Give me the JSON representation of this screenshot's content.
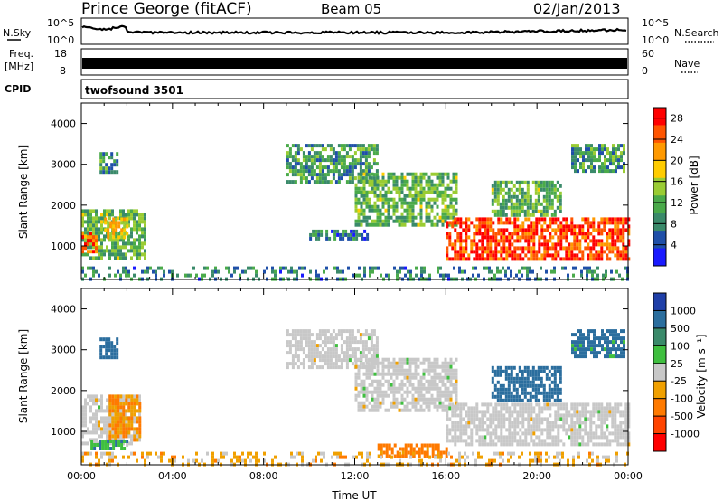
{
  "header": {
    "station": "Prince George (fitACF)",
    "beam": "Beam 05",
    "date": "02/Jan/2013"
  },
  "noise_panel": {
    "left_label": "N.Sky",
    "left_ticks": [
      "10^5",
      "10^0"
    ],
    "right_ticks": [
      "10^5",
      "10^0"
    ],
    "right_label": "N.Search"
  },
  "freq_panel": {
    "left_label_1": "Freq.",
    "left_label_2": "[MHz]",
    "left_ticks": [
      "18",
      "8"
    ],
    "right_ticks": [
      "60",
      "0"
    ],
    "right_label": "Nave"
  },
  "cpid_panel": {
    "label": "CPID",
    "value": "twofsound 3501"
  },
  "colors": {
    "power_scale": [
      "#1a1aff",
      "#1f4fa8",
      "#3a8a6a",
      "#4aaa4a",
      "#9acc33",
      "#ffcc00",
      "#ff9900",
      "#ff5500",
      "#ff0000"
    ],
    "velocity_scale": [
      "#1f3fa8",
      "#2b6e9e",
      "#3a8a6a",
      "#3fbf3f",
      "#c8c8c8",
      "#f0a000",
      "#ff7a00",
      "#ff4400",
      "#ff0000"
    ],
    "ground_scatter": "#c8c8c8"
  },
  "chart_data": [
    {
      "type": "heatmap",
      "name": "Power",
      "xlabel": "",
      "ylabel": "Slant Range [km]",
      "xlim": [
        0,
        24
      ],
      "ylim": [
        180,
        4500
      ],
      "y_ticks": [
        "1000",
        "2000",
        "3000",
        "4000"
      ],
      "colorbar_label": "Power [dB]",
      "colorbar_ticks": [
        "4",
        "8",
        "12",
        "16",
        "20",
        "24",
        "28"
      ],
      "colorbar_range": [
        0,
        30
      ],
      "regions": [
        {
          "t0": 0.0,
          "t1": 2.8,
          "r0": 700,
          "r1": 1900,
          "value": 12
        },
        {
          "t0": 0.0,
          "t1": 0.6,
          "r0": 850,
          "r1": 1350,
          "value": 24
        },
        {
          "t0": 1.0,
          "t1": 2.0,
          "r0": 1200,
          "r1": 1700,
          "value": 18
        },
        {
          "t0": 0.8,
          "t1": 1.6,
          "r0": 2800,
          "r1": 3300,
          "value": 10
        },
        {
          "t0": 9.0,
          "t1": 13.0,
          "r0": 2600,
          "r1": 3500,
          "value": 10
        },
        {
          "t0": 12.0,
          "t1": 16.5,
          "r0": 1500,
          "r1": 2800,
          "value": 12
        },
        {
          "t0": 10.0,
          "t1": 12.5,
          "r0": 1200,
          "r1": 1400,
          "value": 6
        },
        {
          "t0": 16.0,
          "t1": 24.0,
          "r0": 700,
          "r1": 1700,
          "value": 26
        },
        {
          "t0": 18.0,
          "t1": 21.0,
          "r0": 1800,
          "r1": 2600,
          "value": 12
        },
        {
          "t0": 21.5,
          "t1": 23.8,
          "r0": 2800,
          "r1": 3500,
          "value": 10
        },
        {
          "t0": 0.0,
          "t1": 24.0,
          "r0": 180,
          "r1": 500,
          "value": 8
        }
      ]
    },
    {
      "type": "heatmap",
      "name": "Velocity",
      "xlabel": "Time UT",
      "ylabel": "Slant Range [km]",
      "xlim": [
        0,
        24
      ],
      "ylim": [
        180,
        4500
      ],
      "x_ticks": [
        "00:00",
        "04:00",
        "08:00",
        "12:00",
        "16:00",
        "20:00",
        "00:00"
      ],
      "y_ticks": [
        "1000",
        "2000",
        "3000",
        "4000"
      ],
      "colorbar_label": "Velocity [m s⁻¹]",
      "colorbar_ticks": [
        "1000",
        "500",
        "100",
        "25",
        "-25",
        "-100",
        "-500",
        "-1000"
      ],
      "colorbar_range": [
        -1000,
        1000
      ],
      "regions": [
        {
          "t0": 0.0,
          "t1": 2.6,
          "r0": 700,
          "r1": 1900,
          "value": 0,
          "ground": true
        },
        {
          "t0": 1.2,
          "t1": 2.6,
          "r0": 800,
          "r1": 1900,
          "value": -80
        },
        {
          "t0": 0.4,
          "t1": 2.0,
          "r0": 550,
          "r1": 800,
          "value": 80
        },
        {
          "t0": 0.8,
          "t1": 1.6,
          "r0": 2800,
          "r1": 3300,
          "value": 200
        },
        {
          "t0": 9.0,
          "t1": 13.0,
          "r0": 2600,
          "r1": 3500,
          "value": 0,
          "ground": true
        },
        {
          "t0": 12.0,
          "t1": 16.5,
          "r0": 1500,
          "r1": 2800,
          "value": 0,
          "ground": true
        },
        {
          "t0": 16.0,
          "t1": 24.0,
          "r0": 700,
          "r1": 1700,
          "value": 0,
          "ground": true
        },
        {
          "t0": 18.0,
          "t1": 21.0,
          "r0": 1800,
          "r1": 2600,
          "value": 300
        },
        {
          "t0": 21.5,
          "t1": 23.8,
          "r0": 2800,
          "r1": 3500,
          "value": 150
        },
        {
          "t0": 13.0,
          "t1": 16.0,
          "r0": 400,
          "r1": 700,
          "value": -150
        },
        {
          "t0": 0.0,
          "t1": 24.0,
          "r0": 180,
          "r1": 500,
          "value": -50
        }
      ]
    }
  ]
}
